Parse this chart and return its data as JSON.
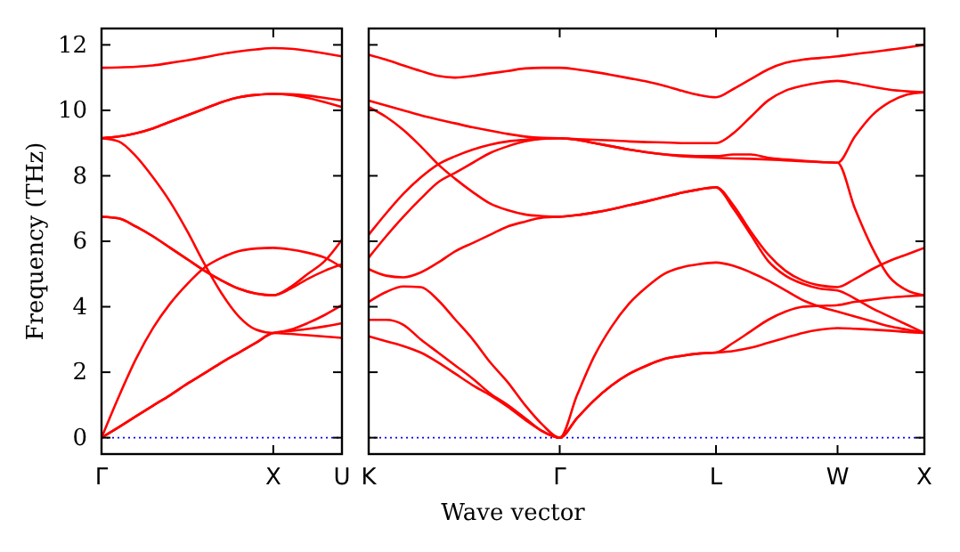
{
  "chart_data": [
    {
      "type": "line",
      "ylabel": "Frequency (THz)",
      "ylim": [
        -0.5,
        12.5
      ],
      "categories": [
        "Γ",
        null,
        null,
        null,
        null,
        null,
        null,
        null,
        null,
        null,
        "X",
        null,
        null,
        null,
        "U"
      ],
      "yticks": [
        0,
        2,
        4,
        6,
        8,
        10,
        12
      ],
      "ref_lines": [
        {
          "axis": "y",
          "value": 0,
          "color": "#0000ff",
          "line_style": "dotted"
        }
      ],
      "series": [
        {
          "color": "#ff0000",
          "values": [
            11.3,
            11.31,
            11.33,
            11.37,
            11.45,
            11.53,
            11.62,
            11.72,
            11.8,
            11.86,
            11.9,
            11.88,
            11.82,
            11.74,
            11.65
          ]
        },
        {
          "color": "#ff0000",
          "values": [
            9.15,
            9.2,
            9.3,
            9.45,
            9.65,
            9.85,
            10.05,
            10.25,
            10.4,
            10.47,
            10.5,
            10.49,
            10.45,
            10.38,
            10.3
          ]
        },
        {
          "color": "#ff0000",
          "values": [
            9.15,
            9.2,
            9.3,
            9.45,
            9.65,
            9.85,
            10.05,
            10.25,
            10.4,
            10.47,
            10.5,
            10.47,
            10.38,
            10.25,
            10.1
          ]
        },
        {
          "color": "#ff0000",
          "values": [
            9.15,
            9.05,
            8.6,
            7.95,
            7.2,
            6.3,
            5.3,
            4.4,
            3.7,
            3.3,
            3.2,
            3.3,
            3.5,
            3.75,
            4.05
          ]
        },
        {
          "color": "#ff0000",
          "values": [
            6.75,
            6.7,
            6.45,
            6.15,
            5.8,
            5.45,
            5.1,
            4.8,
            4.55,
            4.4,
            4.35,
            4.55,
            4.85,
            5.1,
            5.3
          ]
        },
        {
          "color": "#ff0000",
          "values": [
            6.75,
            6.7,
            6.45,
            6.15,
            5.8,
            5.45,
            5.1,
            4.8,
            4.55,
            4.4,
            4.35,
            4.6,
            5.0,
            5.4,
            6.05
          ]
        },
        {
          "color": "#ff0000",
          "values": [
            0,
            1.25,
            2.4,
            3.35,
            4.1,
            4.7,
            5.2,
            5.5,
            5.7,
            5.78,
            5.8,
            5.75,
            5.65,
            5.5,
            5.2
          ]
        },
        {
          "color": "#ff0000",
          "values": [
            0,
            0.32,
            0.65,
            0.98,
            1.3,
            1.65,
            1.97,
            2.3,
            2.6,
            2.9,
            3.2,
            3.26,
            3.32,
            3.4,
            3.5
          ]
        },
        {
          "color": "#ff0000",
          "values": [
            0,
            0.32,
            0.65,
            0.98,
            1.3,
            1.65,
            1.97,
            2.3,
            2.6,
            2.9,
            3.2,
            3.17,
            3.13,
            3.09,
            3.05
          ]
        }
      ]
    },
    {
      "type": "line",
      "xlabel": "Wave vector",
      "tick_labels": "x",
      "ylim": [
        -0.5,
        12.5
      ],
      "categories": [
        "K",
        null,
        null,
        null,
        null,
        null,
        null,
        null,
        null,
        null,
        null,
        "Γ",
        null,
        null,
        null,
        null,
        null,
        null,
        null,
        null,
        "L",
        null,
        null,
        null,
        null,
        null,
        null,
        "W",
        null,
        null,
        null,
        null,
        "X"
      ],
      "yticks": [
        0,
        2,
        4,
        6,
        8,
        10,
        12
      ],
      "ref_lines": [
        {
          "axis": "y",
          "value": 0,
          "color": "#0000ff",
          "line_style": "dotted"
        }
      ],
      "series": [
        {
          "color": "#ff0000",
          "values": [
            11.7,
            11.55,
            11.37,
            11.2,
            11.05,
            11.0,
            11.05,
            11.13,
            11.2,
            11.28,
            11.3,
            11.3,
            11.25,
            11.17,
            11.08,
            10.98,
            10.88,
            10.75,
            10.6,
            10.47,
            10.4,
            10.65,
            10.95,
            11.25,
            11.45,
            11.55,
            11.6,
            11.65,
            11.72,
            11.78,
            11.85,
            11.92,
            12.0
          ]
        },
        {
          "color": "#ff0000",
          "values": [
            10.3,
            10.15,
            10.0,
            9.85,
            9.72,
            9.6,
            9.48,
            9.38,
            9.28,
            9.2,
            9.16,
            9.15,
            9.12,
            9.1,
            9.08,
            9.05,
            9.03,
            9.02,
            9.0,
            9.0,
            9.0,
            9.3,
            9.8,
            10.3,
            10.6,
            10.75,
            10.85,
            10.9,
            10.82,
            10.72,
            10.63,
            10.58,
            10.55
          ]
        },
        {
          "color": "#ff0000",
          "values": [
            6.2,
            6.85,
            7.45,
            7.95,
            8.35,
            8.6,
            8.8,
            8.95,
            9.05,
            9.1,
            9.14,
            9.15,
            9.1,
            9.0,
            8.9,
            8.8,
            8.72,
            8.65,
            8.6,
            8.57,
            8.55,
            8.53,
            8.52,
            8.5,
            8.47,
            8.44,
            8.42,
            8.4,
            9.2,
            9.85,
            10.25,
            10.48,
            10.55
          ]
        },
        {
          "color": "#ff0000",
          "values": [
            5.5,
            6.15,
            6.75,
            7.3,
            7.8,
            8.1,
            8.4,
            8.7,
            8.9,
            9.05,
            9.13,
            9.15,
            9.1,
            9.0,
            8.9,
            8.8,
            8.72,
            8.66,
            8.62,
            8.6,
            8.6,
            8.65,
            8.65,
            8.55,
            8.5,
            8.46,
            8.42,
            8.4,
            7.0,
            5.8,
            4.9,
            4.5,
            4.35
          ]
        },
        {
          "color": "#ff0000",
          "values": [
            10.1,
            9.8,
            9.4,
            8.9,
            8.35,
            7.9,
            7.5,
            7.15,
            6.95,
            6.82,
            6.77,
            6.75,
            6.8,
            6.88,
            6.98,
            7.1,
            7.22,
            7.35,
            7.48,
            7.58,
            7.65,
            7.1,
            6.3,
            5.6,
            5.1,
            4.8,
            4.65,
            4.6,
            4.85,
            5.15,
            5.4,
            5.6,
            5.8
          ]
        },
        {
          "color": "#ff0000",
          "values": [
            5.15,
            4.95,
            4.9,
            5.05,
            5.35,
            5.7,
            5.95,
            6.2,
            6.45,
            6.6,
            6.72,
            6.75,
            6.8,
            6.88,
            6.98,
            7.1,
            7.22,
            7.35,
            7.48,
            7.58,
            7.65,
            7.0,
            6.2,
            5.4,
            4.95,
            4.7,
            4.55,
            4.5,
            4.25,
            3.95,
            3.7,
            3.45,
            3.2
          ]
        },
        {
          "color": "#ff0000",
          "values": [
            4.15,
            4.45,
            4.62,
            4.6,
            4.2,
            3.6,
            3.0,
            2.3,
            1.7,
            1.0,
            0.4,
            0,
            1.3,
            2.5,
            3.4,
            4.1,
            4.6,
            5.0,
            5.2,
            5.3,
            5.35,
            5.25,
            5.05,
            4.8,
            4.5,
            4.2,
            4.0,
            3.85,
            3.7,
            3.55,
            3.4,
            3.3,
            3.2
          ]
        },
        {
          "color": "#ff0000",
          "values": [
            3.6,
            3.6,
            3.45,
            3.0,
            2.6,
            2.2,
            1.8,
            1.35,
            1.0,
            0.6,
            0.2,
            0,
            0.6,
            1.15,
            1.6,
            1.95,
            2.2,
            2.4,
            2.5,
            2.57,
            2.6,
            2.9,
            3.25,
            3.6,
            3.85,
            4.0,
            4.03,
            4.05,
            4.15,
            4.22,
            4.28,
            4.32,
            4.35
          ]
        },
        {
          "color": "#ff0000",
          "values": [
            3.1,
            2.95,
            2.8,
            2.6,
            2.3,
            1.95,
            1.6,
            1.3,
            0.95,
            0.55,
            0.2,
            0,
            0.6,
            1.15,
            1.6,
            1.95,
            2.2,
            2.4,
            2.5,
            2.57,
            2.6,
            2.65,
            2.75,
            2.9,
            3.05,
            3.2,
            3.3,
            3.35,
            3.33,
            3.3,
            3.27,
            3.23,
            3.2
          ]
        }
      ]
    }
  ]
}
